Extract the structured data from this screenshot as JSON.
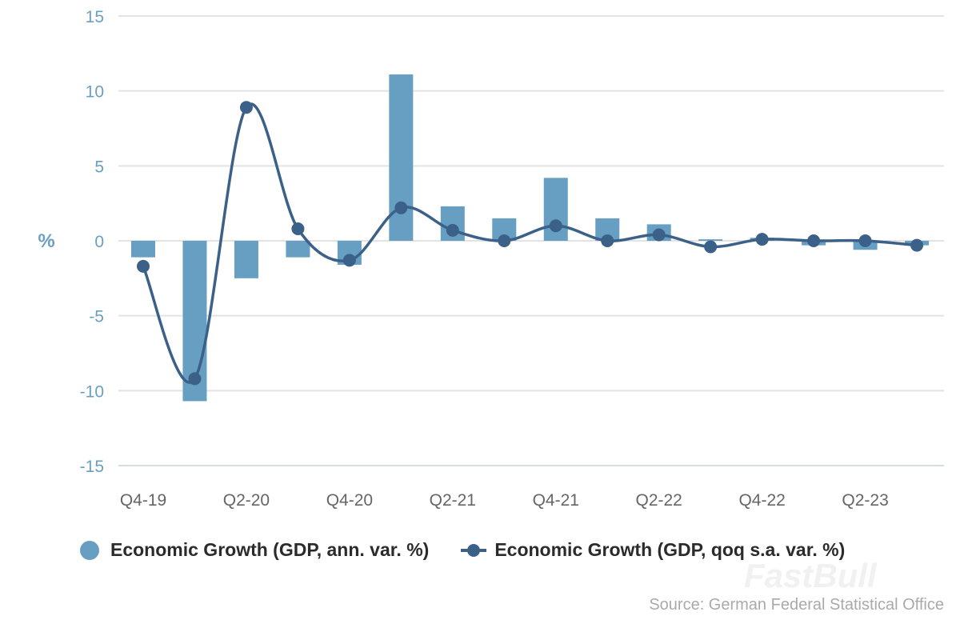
{
  "chart_data": {
    "type": "bar+line",
    "ylabel": "%",
    "ylim": [
      -15,
      15
    ],
    "yticks": [
      15,
      10,
      5,
      0,
      -5,
      -10,
      -15
    ],
    "grid": true,
    "categories": [
      "Q4-19",
      "Q1-20",
      "Q2-20",
      "Q3-20",
      "Q4-20",
      "Q1-21",
      "Q2-21",
      "Q3-21",
      "Q4-21",
      "Q1-22",
      "Q2-22",
      "Q3-22",
      "Q4-22",
      "Q1-23",
      "Q2-23",
      "Q3-23"
    ],
    "xtick_labels": [
      "Q4-19",
      "Q2-20",
      "Q4-20",
      "Q2-21",
      "Q4-21",
      "Q2-22",
      "Q4-22",
      "Q2-23"
    ],
    "series": [
      {
        "name": "Economic Growth (GDP, ann. var. %)",
        "type": "bar",
        "color": "#679fc2",
        "values": [
          -1.1,
          -10.7,
          -2.5,
          -1.1,
          -1.6,
          11.1,
          2.3,
          1.5,
          4.2,
          1.5,
          1.1,
          0.1,
          0.2,
          -0.3,
          -0.6,
          -0.3
        ]
      },
      {
        "name": "Economic Growth (GDP, qoq s.a. var. %)",
        "type": "line",
        "color": "#3b6189",
        "values": [
          -1.7,
          -9.2,
          8.9,
          0.8,
          -1.3,
          2.2,
          0.7,
          0.0,
          1.0,
          0.0,
          0.4,
          -0.4,
          0.1,
          0.0,
          0.0,
          -0.3
        ]
      }
    ],
    "legend_position": "bottom",
    "source": "Source: German Federal Statistical Office",
    "watermark": "FastBull"
  }
}
